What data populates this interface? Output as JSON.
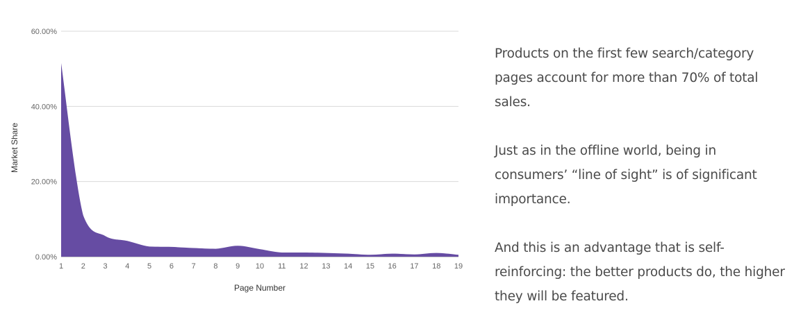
{
  "chart_data": {
    "type": "area",
    "xlabel": "Page Number",
    "ylabel": "Market Share",
    "x": [
      1,
      2,
      3,
      4,
      5,
      6,
      7,
      8,
      9,
      10,
      11,
      12,
      13,
      14,
      15,
      16,
      17,
      18,
      19
    ],
    "values": [
      51.5,
      11.0,
      5.5,
      4.2,
      2.7,
      2.6,
      2.3,
      2.1,
      2.9,
      2.0,
      1.1,
      1.1,
      1.0,
      0.8,
      0.5,
      0.8,
      0.6,
      1.0,
      0.5
    ],
    "ylim": [
      0,
      60
    ],
    "yticks": [
      "0.00%",
      "20.00%",
      "40.00%",
      "60.00%"
    ],
    "xticks": [
      "1",
      "2",
      "3",
      "4",
      "5",
      "6",
      "7",
      "8",
      "9",
      "10",
      "11",
      "12",
      "13",
      "14",
      "15",
      "16",
      "17",
      "18",
      "19"
    ],
    "grid": true,
    "fill_color": "#664ca3"
  },
  "text": {
    "p1": "Products on the first few search/category pages account for more than 70% of total sales.",
    "p2": "Just as in the offline world, being in consumers’ “line of sight” is of significant importance.",
    "p3": "And this is an advantage that is self-reinforcing: the better products do, the higher they will be featured."
  }
}
